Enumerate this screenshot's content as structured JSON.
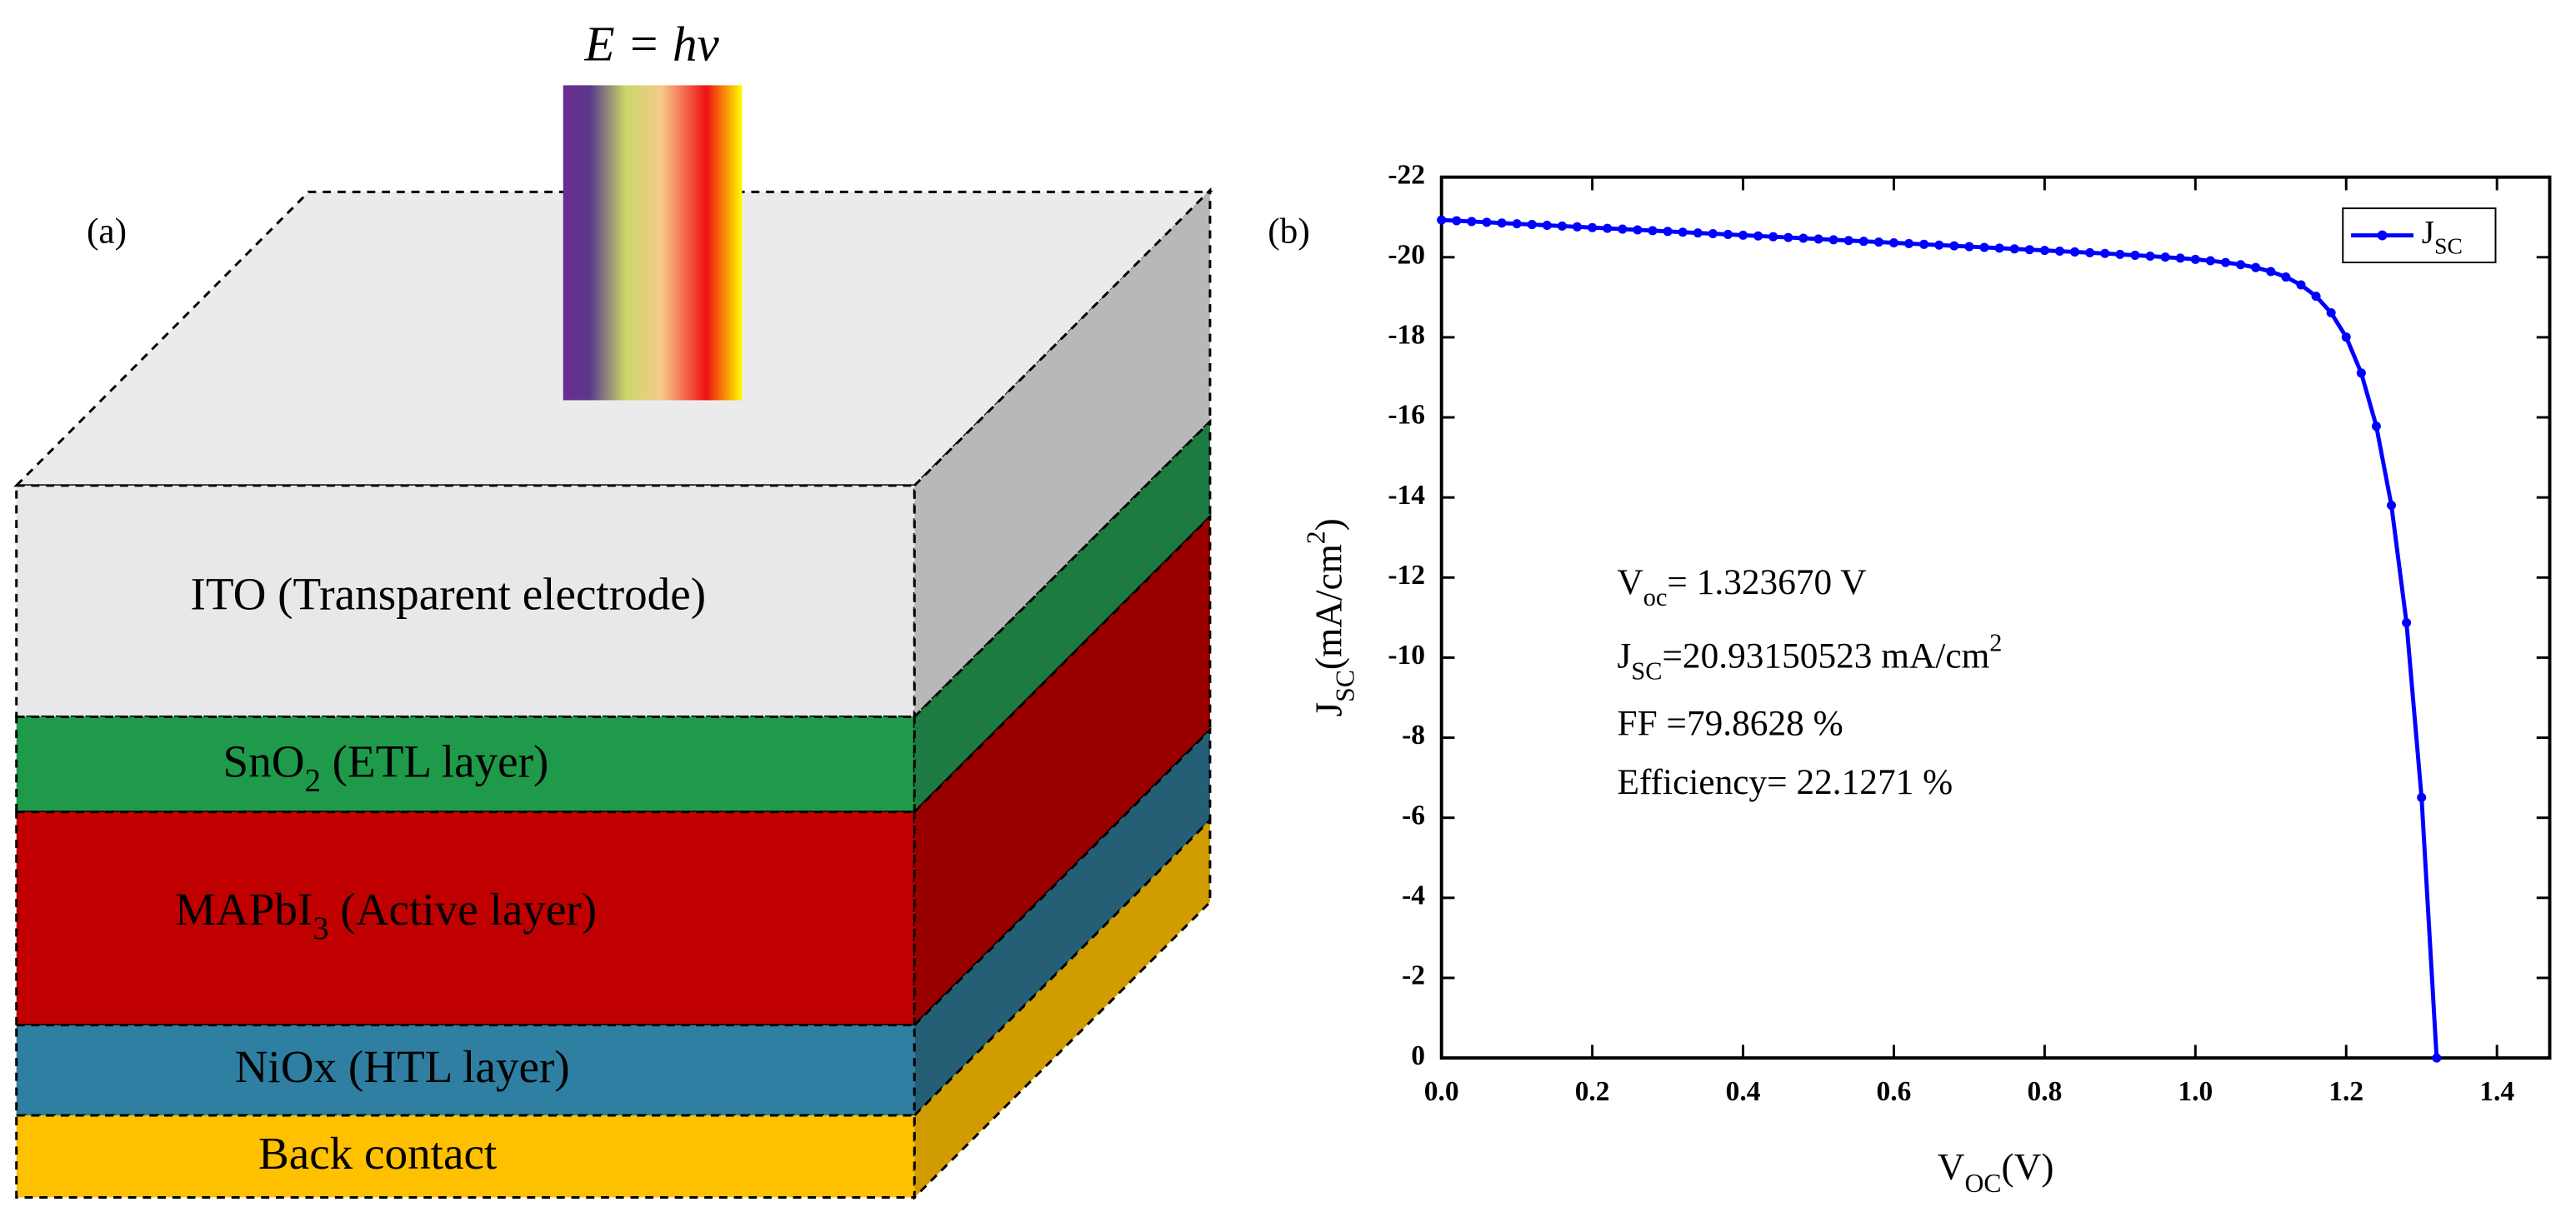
{
  "diagram": {
    "label": "(a)",
    "equation": "E = hv",
    "layers": [
      {
        "name": [
          {
            "text": "ITO  (Transparent electrode)"
          }
        ],
        "color": "#e8e8e8",
        "side_color": "#b8b8b8"
      },
      {
        "name": [
          {
            "text": "SnO"
          },
          {
            "text": "2",
            "script": "sub"
          },
          {
            "text": " (ETL layer)"
          }
        ],
        "color": "#1f9a4a",
        "side_color": "#1d7a40"
      },
      {
        "name": [
          {
            "text": "MAPbI"
          },
          {
            "text": "3",
            "script": "sub"
          },
          {
            "text": " (Active layer)"
          }
        ],
        "color": "#c00000",
        "side_color": "#980000"
      },
      {
        "name": [
          {
            "text": "NiOx  (HTL layer)"
          }
        ],
        "color": "#2e7fa2",
        "side_color": "#245f76"
      },
      {
        "name": [
          {
            "text": "Back contact"
          }
        ],
        "color": "#ffc000",
        "side_color": "#d09c00"
      }
    ]
  },
  "chart_data": {
    "type": "line",
    "panel_label": "(b)",
    "x_label": [
      {
        "text": "V"
      },
      {
        "text": "OC",
        "script": "sub"
      },
      {
        "text": "(V)"
      }
    ],
    "y_label": [
      {
        "text": "J"
      },
      {
        "text": "SC",
        "script": "sub"
      },
      {
        "text": "(mA/cm"
      },
      {
        "text": "2",
        "script": "sup"
      },
      {
        "text": ")"
      }
    ],
    "annotations": [
      [
        {
          "text": "V"
        },
        {
          "text": "oc",
          "script": "sub"
        },
        {
          "text": "= 1.323670 V"
        }
      ],
      [
        {
          "text": "J"
        },
        {
          "text": "SC",
          "script": "sub"
        },
        {
          "text": "=20.93150523  mA/cm"
        },
        {
          "text": "2",
          "script": "sup"
        }
      ],
      [
        {
          "text": "FF =79.8628 %"
        }
      ],
      [
        {
          "text": "Efficiency= 22.1271 %"
        }
      ]
    ],
    "x": [
      0,
      0.02,
      0.04,
      0.06,
      0.08,
      0.1,
      0.12,
      0.14,
      0.16,
      0.18,
      0.2,
      0.22,
      0.24,
      0.26,
      0.28,
      0.3,
      0.32,
      0.34,
      0.36,
      0.38,
      0.4,
      0.42,
      0.44,
      0.46,
      0.48,
      0.5,
      0.52,
      0.54,
      0.56,
      0.58,
      0.6,
      0.62,
      0.64,
      0.66,
      0.68,
      0.7,
      0.72,
      0.74,
      0.76,
      0.78,
      0.8,
      0.82,
      0.84,
      0.86,
      0.88,
      0.9,
      0.92,
      0.94,
      0.96,
      0.98,
      1.0,
      1.02,
      1.04,
      1.06,
      1.08,
      1.1,
      1.12,
      1.14,
      1.16,
      1.18,
      1.2,
      1.22,
      1.24,
      1.26,
      1.28,
      1.3,
      1.32
    ],
    "series": [
      {
        "name": [
          {
            "text": "J"
          },
          {
            "text": "SC",
            "script": "sub"
          }
        ],
        "color": "#0000ff",
        "values": [
          -20.93,
          -20.911,
          -20.892,
          -20.873,
          -20.854,
          -20.835,
          -20.816,
          -20.797,
          -20.778,
          -20.759,
          -20.74,
          -20.721,
          -20.702,
          -20.683,
          -20.664,
          -20.645,
          -20.626,
          -20.607,
          -20.588,
          -20.569,
          -20.55,
          -20.531,
          -20.512,
          -20.493,
          -20.474,
          -20.455,
          -20.436,
          -20.417,
          -20.398,
          -20.379,
          -20.36,
          -20.341,
          -20.322,
          -20.303,
          -20.284,
          -20.265,
          -20.246,
          -20.227,
          -20.208,
          -20.189,
          -20.17,
          -20.151,
          -20.132,
          -20.113,
          -20.094,
          -20.071,
          -20.049,
          -20.027,
          -20.003,
          -19.977,
          -19.947,
          -19.912,
          -19.869,
          -19.814,
          -19.742,
          -19.643,
          -19.506,
          -19.31,
          -19.026,
          -18.612,
          -18.005,
          -17.108,
          -15.779,
          -13.803,
          -10.871,
          -6.505,
          0
        ]
      }
    ],
    "xlim": [
      0,
      1.47
    ],
    "ylim": [
      0,
      -22
    ],
    "xticks": [
      {
        "value": 0,
        "label": "0.0"
      },
      0.2,
      0.4,
      0.6,
      0.8,
      {
        "value": 1,
        "label": "1.0"
      },
      1.2,
      1.4
    ],
    "yticks": [
      0,
      -2,
      -4,
      -6,
      -8,
      -10,
      -12,
      -14,
      -16,
      -18,
      -20,
      -22
    ],
    "legend": "upper right"
  }
}
